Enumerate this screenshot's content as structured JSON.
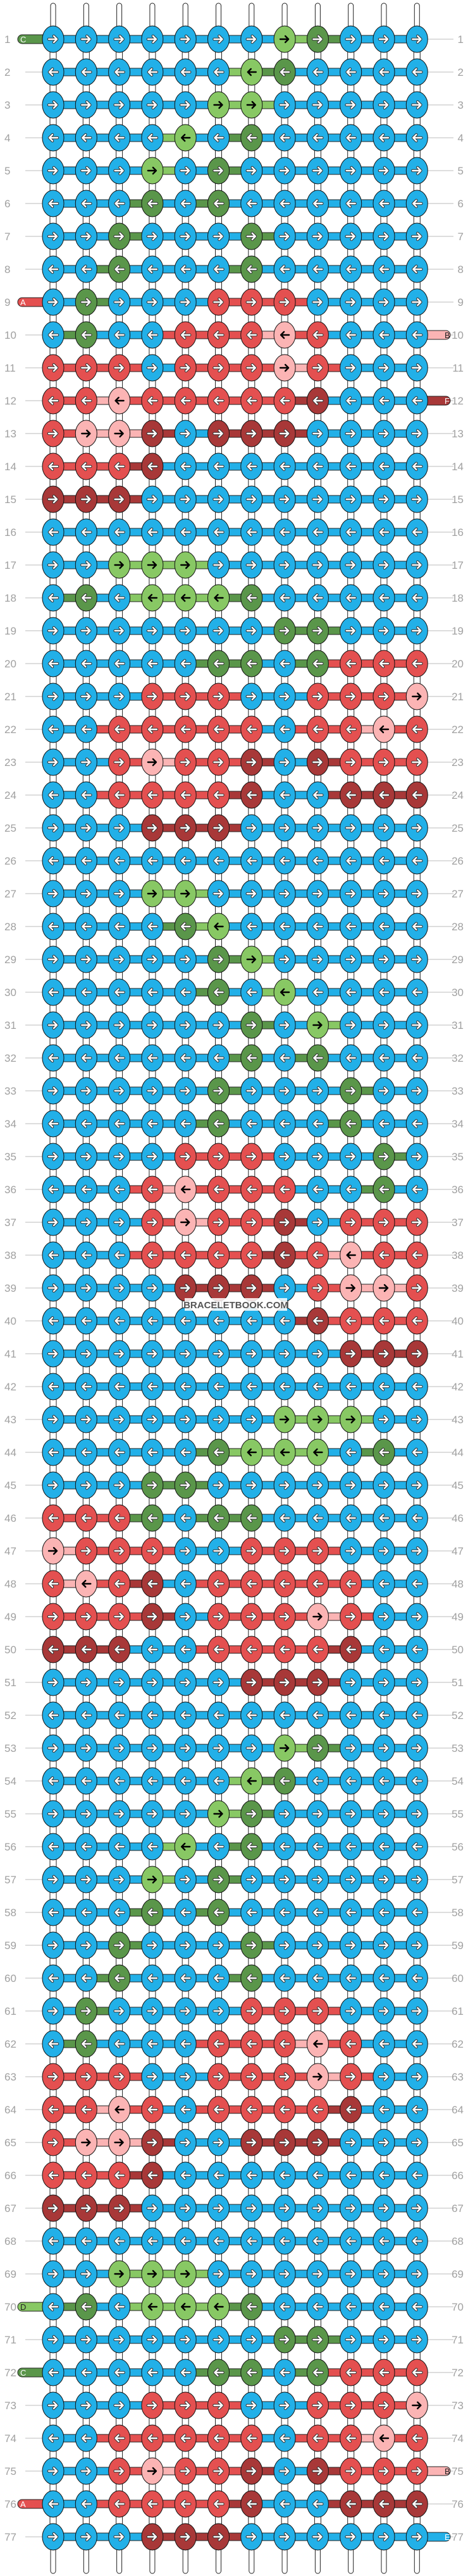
{
  "watermark": "BRACELETBOOK.COM",
  "colors": {
    "b": "#22b0e8",
    "g": "#88c864",
    "G": "#5a964a",
    "r": "#e45050",
    "p": "#fbb4b4",
    "R": "#a83838"
  },
  "light_colors": [
    "g",
    "p"
  ],
  "arrows": {
    "odd": "right",
    "even": "left"
  },
  "rows": [
    "bbbbbbbgGbbb",
    "bbbbbbgGbbbb",
    "bbbbbggbbbbb",
    "bbbbgbGbbbbb",
    "bbbgbGbbbbbb",
    "bbbGbGbbbbbb",
    "bbGbbbGbbbbb",
    "bbGbbbGbbbbb",
    "bGbbbrrrbbbb",
    "bGbbrrrprbbb",
    "rrrbrrrprbbb",
    "rrprrrrrRbbb",
    "rppRbRRRbbbb",
    "rrrRbbbbbbbb",
    "RRRbbbbbbbbb",
    "bbbbbbbbbbbb",
    "bbgggbbbbbbb",
    "bGbgggGbbbbb",
    "bbbbbbbGGbbb",
    "bbbbbGGbGrrr",
    "bbbrrrbbrrrp",
    "bbrrrrrbrrpr",
    "bbrprrRbRrrr",
    "bbrrrrRbbRRR",
    "bbbRRRbbbbbb",
    "bbbbbbbbbbbb",
    "bbbggbbbbbbb",
    "bbbbGgbbbbbb",
    "bbbbbGgbbbbb",
    "bbbbbGbgbbbb",
    "bbbbbbGbgbbb",
    "bbbbbbGbGbbb",
    "bbbbbGbbbGbb",
    "bbbbbGbbbGbb",
    "bbbbrrrbbbGb",
    "bbbrprrrbbGb",
    "bbbrprrRbrrr",
    "bbbrrrrRrprr",
    "bbbbRRRbrppr",
    "bbbbbbbbRrrr",
    "bbbbbbbbbRRR",
    "bbbbbbbbbbbb",
    "bbbbbbbgggbb",
    "bbbbbGgggbGb",
    "bbbGGbbbbbbb",
    "rrrGbGGbbbbb",
    "prrrbbrrrbbb",
    "rprRbrrrrrbb",
    "rrrRbrrrprbb",
    "RRRbbrrrrRbb",
    "bbbbbbRRRbbb",
    "bbbbbbbbbbbb",
    "bbbbbbbgGbbb",
    "bbbbbbgGbbbb",
    "bbbbbgGbbbbb",
    "bbbbgbGbbbbb",
    "bbbgbGbbbbbb",
    "bbbGbGbbbbbb",
    "bbGbbbGbbbbb",
    "bbGbbbGbbbbb",
    "bGbbbbrrrbbb",
    "bGbbbrrrprbb",
    "rrrbbrrrprbb",
    "rrprbrrrrRbb",
    "rppRbbRRRbbb",
    "rrrRbbbbbbbb",
    "RRRbbbbbbbbb",
    "bbbbbbbbbbbb",
    "bbgggbbbbbbb",
    "bGbgggGbbbbb",
    "bbbbbbbGGbbb",
    "bbbbbGGbGrrr",
    "bbbrrrbbrrrp",
    "bbrrrrrbrrpr",
    "bbrprrRbRrrr",
    "bbrrrrRbbRRR",
    "bbbRRRbbbbbb"
  ],
  "string_ends": [
    {
      "row": 1,
      "side": "left",
      "letter": "C",
      "color": "G"
    },
    {
      "row": 9,
      "side": "left",
      "letter": "A",
      "color": "r"
    },
    {
      "row": 10,
      "side": "right",
      "letter": "B",
      "color": "p"
    },
    {
      "row": 12,
      "side": "right",
      "letter": "F",
      "color": "R"
    },
    {
      "row": 70,
      "side": "left",
      "letter": "D",
      "color": "g"
    },
    {
      "row": 72,
      "side": "left",
      "letter": "C",
      "color": "G"
    },
    {
      "row": 75,
      "side": "right",
      "letter": "B",
      "color": "p"
    },
    {
      "row": 76,
      "side": "left",
      "letter": "A",
      "color": "r"
    },
    {
      "row": 77,
      "side": "right",
      "letter": "E",
      "color": "b"
    }
  ]
}
